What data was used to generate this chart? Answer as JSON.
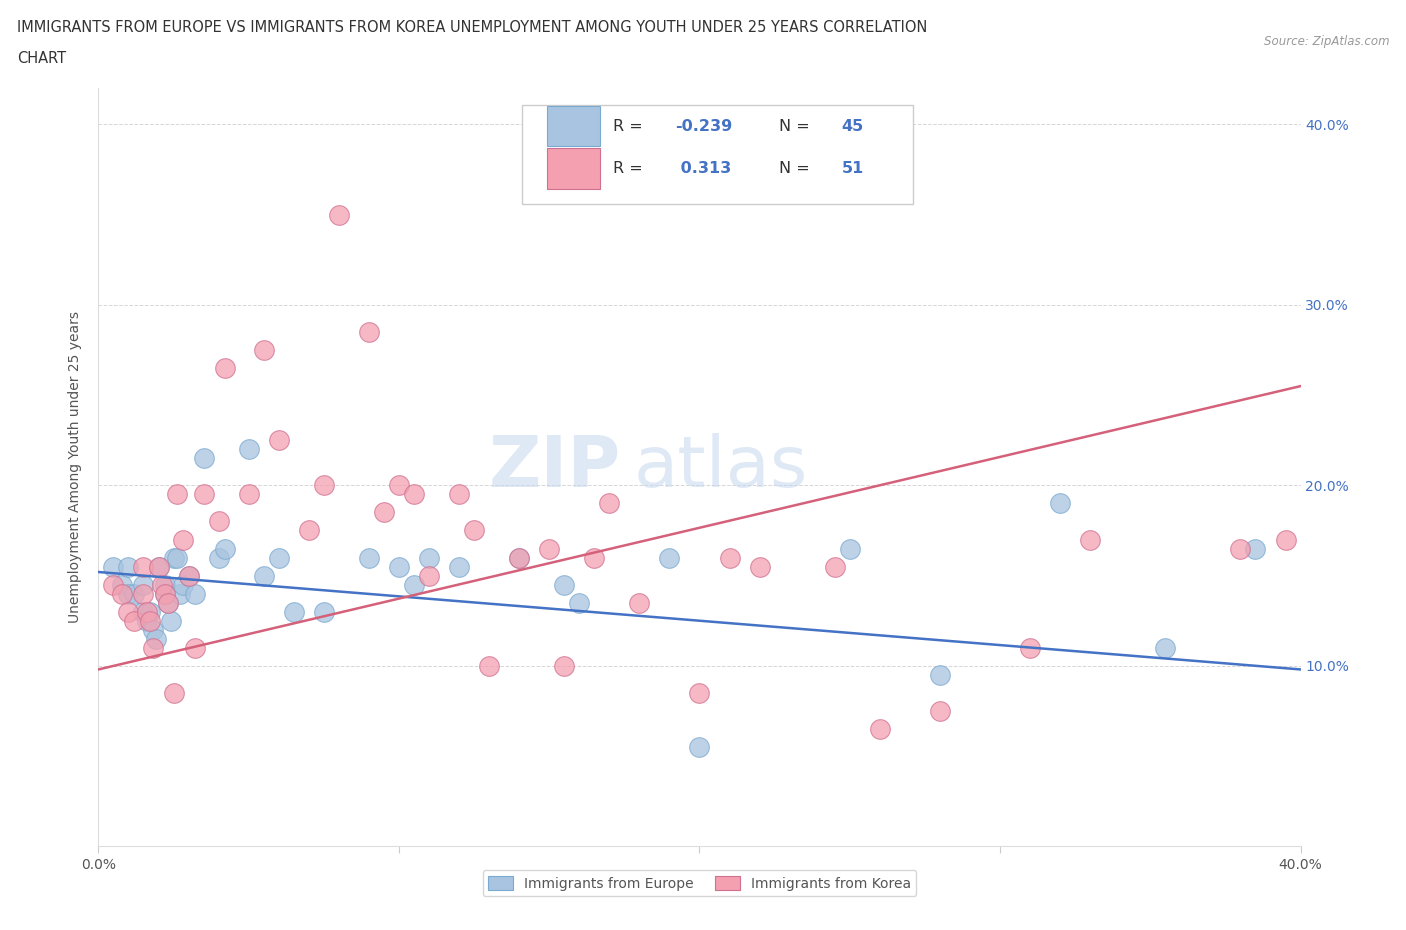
{
  "title_line1": "IMMIGRANTS FROM EUROPE VS IMMIGRANTS FROM KOREA UNEMPLOYMENT AMONG YOUTH UNDER 25 YEARS CORRELATION",
  "title_line2": "CHART",
  "source": "Source: ZipAtlas.com",
  "ylabel": "Unemployment Among Youth under 25 years",
  "r_europe": -0.239,
  "n_europe": 45,
  "r_korea": 0.313,
  "n_korea": 51,
  "xlim": [
    0.0,
    0.4
  ],
  "ylim": [
    0.0,
    0.42
  ],
  "ytick_positions": [
    0.1,
    0.2,
    0.3,
    0.4
  ],
  "ytick_labels": [
    "10.0%",
    "20.0%",
    "30.0%",
    "40.0%"
  ],
  "watermark_bold": "ZIP",
  "watermark_light": "atlas",
  "europe_color": "#a8c4e0",
  "korea_color": "#f4a0b0",
  "europe_line_color": "#4472c4",
  "korea_line_color": "#d4607a",
  "background_color": "#ffffff",
  "eu_line_start_y": 0.152,
  "eu_line_end_y": 0.098,
  "ko_line_start_y": 0.098,
  "ko_line_end_y": 0.255,
  "europe_scatter_x": [
    0.005,
    0.008,
    0.01,
    0.01,
    0.012,
    0.015,
    0.015,
    0.016,
    0.017,
    0.018,
    0.019,
    0.02,
    0.022,
    0.022,
    0.023,
    0.024,
    0.025,
    0.026,
    0.027,
    0.028,
    0.03,
    0.032,
    0.035,
    0.04,
    0.042,
    0.05,
    0.055,
    0.06,
    0.065,
    0.075,
    0.09,
    0.1,
    0.105,
    0.11,
    0.12,
    0.14,
    0.155,
    0.16,
    0.19,
    0.2,
    0.25,
    0.28,
    0.32,
    0.355,
    0.385
  ],
  "europe_scatter_y": [
    0.155,
    0.145,
    0.155,
    0.14,
    0.14,
    0.145,
    0.13,
    0.125,
    0.13,
    0.12,
    0.115,
    0.155,
    0.145,
    0.14,
    0.135,
    0.125,
    0.16,
    0.16,
    0.14,
    0.145,
    0.15,
    0.14,
    0.215,
    0.16,
    0.165,
    0.22,
    0.15,
    0.16,
    0.13,
    0.13,
    0.16,
    0.155,
    0.145,
    0.16,
    0.155,
    0.16,
    0.145,
    0.135,
    0.16,
    0.055,
    0.165,
    0.095,
    0.19,
    0.11,
    0.165
  ],
  "korea_scatter_x": [
    0.005,
    0.008,
    0.01,
    0.012,
    0.015,
    0.015,
    0.016,
    0.017,
    0.018,
    0.02,
    0.021,
    0.022,
    0.023,
    0.025,
    0.026,
    0.028,
    0.03,
    0.032,
    0.035,
    0.04,
    0.042,
    0.05,
    0.055,
    0.06,
    0.07,
    0.075,
    0.08,
    0.09,
    0.095,
    0.1,
    0.105,
    0.11,
    0.12,
    0.125,
    0.13,
    0.14,
    0.15,
    0.155,
    0.165,
    0.17,
    0.18,
    0.2,
    0.21,
    0.22,
    0.245,
    0.26,
    0.28,
    0.31,
    0.33,
    0.38,
    0.395
  ],
  "korea_scatter_y": [
    0.145,
    0.14,
    0.13,
    0.125,
    0.155,
    0.14,
    0.13,
    0.125,
    0.11,
    0.155,
    0.145,
    0.14,
    0.135,
    0.085,
    0.195,
    0.17,
    0.15,
    0.11,
    0.195,
    0.18,
    0.265,
    0.195,
    0.275,
    0.225,
    0.175,
    0.2,
    0.35,
    0.285,
    0.185,
    0.2,
    0.195,
    0.15,
    0.195,
    0.175,
    0.1,
    0.16,
    0.165,
    0.1,
    0.16,
    0.19,
    0.135,
    0.085,
    0.16,
    0.155,
    0.155,
    0.065,
    0.075,
    0.11,
    0.17,
    0.165,
    0.17
  ]
}
